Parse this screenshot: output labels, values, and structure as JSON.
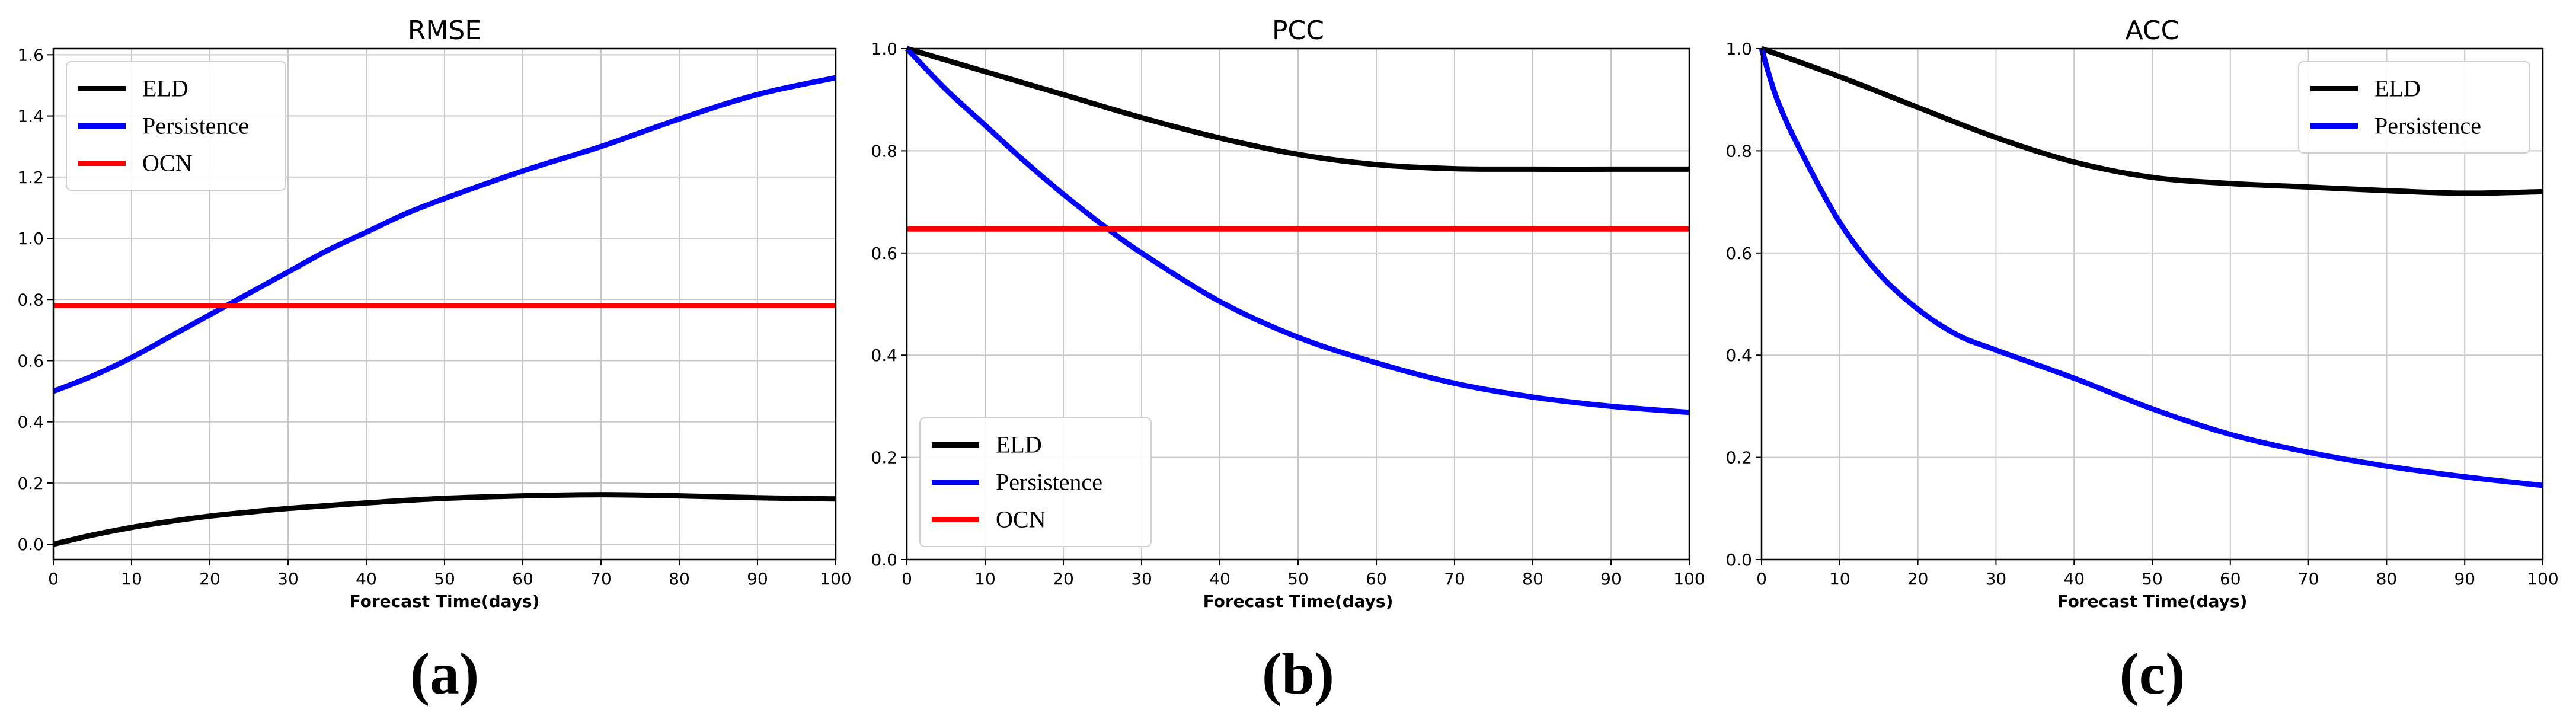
{
  "chart_data": [
    {
      "type": "line",
      "title": "RMSE",
      "xlabel": "Forecast Time(days)",
      "ylabel": "",
      "xlim": [
        0,
        100
      ],
      "ylim": [
        -0.05,
        1.62
      ],
      "xticks": [
        0,
        10,
        20,
        30,
        40,
        50,
        60,
        70,
        80,
        90,
        100
      ],
      "yticks": [
        0.0,
        0.2,
        0.4,
        0.6,
        0.8,
        1.0,
        1.2,
        1.4,
        1.6
      ],
      "ytick_labels": [
        "0.0",
        "0.2",
        "0.4",
        "0.6",
        "0.8",
        "1.0",
        "1.2",
        "1.4",
        "1.6"
      ],
      "xtick_labels": [
        "0",
        "10",
        "20",
        "30",
        "40",
        "50",
        "60",
        "70",
        "80",
        "90",
        "100"
      ],
      "grid": true,
      "legend_position": "top-left",
      "panel_label": "(a)",
      "series": [
        {
          "name": "ELD",
          "color": "#000000",
          "x": [
            0,
            5,
            10,
            15,
            20,
            25,
            30,
            40,
            50,
            60,
            70,
            80,
            90,
            100
          ],
          "values": [
            0.0,
            0.03,
            0.055,
            0.075,
            0.092,
            0.105,
            0.117,
            0.135,
            0.15,
            0.158,
            0.162,
            0.158,
            0.152,
            0.148
          ]
        },
        {
          "name": "Persistence",
          "color": "#0000ff",
          "x": [
            0,
            5,
            10,
            15,
            20,
            25,
            30,
            35,
            40,
            45,
            50,
            60,
            70,
            80,
            90,
            100
          ],
          "values": [
            0.5,
            0.55,
            0.61,
            0.68,
            0.75,
            0.82,
            0.89,
            0.96,
            1.02,
            1.08,
            1.13,
            1.22,
            1.3,
            1.39,
            1.47,
            1.525
          ]
        },
        {
          "name": "OCN",
          "color": "#ff0000",
          "x": [
            0,
            100
          ],
          "values": [
            0.78,
            0.78
          ]
        }
      ]
    },
    {
      "type": "line",
      "title": "PCC",
      "xlabel": "Forecast Time(days)",
      "ylabel": "",
      "xlim": [
        0,
        100
      ],
      "ylim": [
        0.0,
        1.0
      ],
      "xticks": [
        0,
        10,
        20,
        30,
        40,
        50,
        60,
        70,
        80,
        90,
        100
      ],
      "yticks": [
        0.0,
        0.2,
        0.4,
        0.6,
        0.8,
        1.0
      ],
      "ytick_labels": [
        "0.0",
        "0.2",
        "0.4",
        "0.6",
        "0.8",
        "1.0"
      ],
      "xtick_labels": [
        "0",
        "10",
        "20",
        "30",
        "40",
        "50",
        "60",
        "70",
        "80",
        "90",
        "100"
      ],
      "grid": true,
      "legend_position": "bottom-left",
      "panel_label": "(b)",
      "series": [
        {
          "name": "ELD",
          "color": "#000000",
          "x": [
            0,
            10,
            20,
            30,
            40,
            50,
            60,
            70,
            80,
            90,
            100
          ],
          "values": [
            1.0,
            0.955,
            0.91,
            0.865,
            0.825,
            0.793,
            0.773,
            0.765,
            0.764,
            0.764,
            0.764
          ]
        },
        {
          "name": "Persistence",
          "color": "#0000ff",
          "x": [
            0,
            5,
            10,
            15,
            20,
            25,
            30,
            40,
            50,
            60,
            70,
            80,
            90,
            100
          ],
          "values": [
            1.0,
            0.92,
            0.85,
            0.78,
            0.715,
            0.655,
            0.6,
            0.505,
            0.435,
            0.385,
            0.345,
            0.318,
            0.3,
            0.288
          ]
        },
        {
          "name": "OCN",
          "color": "#ff0000",
          "x": [
            0,
            100
          ],
          "values": [
            0.647,
            0.647
          ]
        }
      ]
    },
    {
      "type": "line",
      "title": "ACC",
      "xlabel": "Forecast Time(days)",
      "ylabel": "",
      "xlim": [
        0,
        100
      ],
      "ylim": [
        0.0,
        1.0
      ],
      "xticks": [
        0,
        10,
        20,
        30,
        40,
        50,
        60,
        70,
        80,
        90,
        100
      ],
      "yticks": [
        0.0,
        0.2,
        0.4,
        0.6,
        0.8,
        1.0
      ],
      "ytick_labels": [
        "0.0",
        "0.2",
        "0.4",
        "0.6",
        "0.8",
        "1.0"
      ],
      "xtick_labels": [
        "0",
        "10",
        "20",
        "30",
        "40",
        "50",
        "60",
        "70",
        "80",
        "90",
        "100"
      ],
      "grid": true,
      "legend_position": "top-right",
      "panel_label": "(c)",
      "series": [
        {
          "name": "ELD",
          "color": "#000000",
          "x": [
            0,
            10,
            20,
            30,
            40,
            50,
            60,
            70,
            80,
            90,
            100
          ],
          "values": [
            1.0,
            0.945,
            0.885,
            0.826,
            0.778,
            0.748,
            0.736,
            0.729,
            0.722,
            0.717,
            0.72
          ]
        },
        {
          "name": "Persistence",
          "color": "#0000ff",
          "x": [
            0,
            2,
            5,
            10,
            15,
            20,
            25,
            30,
            40,
            50,
            60,
            70,
            80,
            90,
            100
          ],
          "values": [
            1.0,
            0.9,
            0.8,
            0.66,
            0.56,
            0.49,
            0.44,
            0.41,
            0.355,
            0.295,
            0.245,
            0.21,
            0.183,
            0.162,
            0.145
          ]
        }
      ]
    }
  ]
}
